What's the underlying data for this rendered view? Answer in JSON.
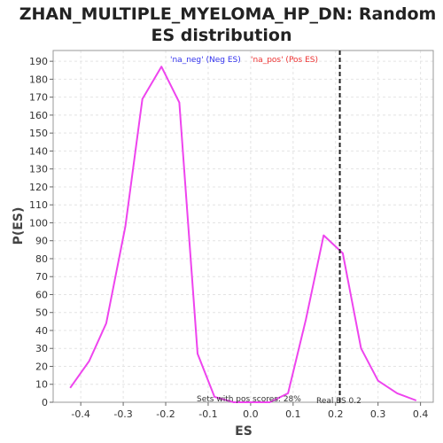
{
  "chart_data": {
    "type": "line",
    "title_line1": "ZHAN_MULTIPLE_MYELOMA_HP_DN: Random",
    "title_line2": "ES distribution",
    "xlabel": "ES",
    "ylabel": "P(ES)",
    "xlim": [
      -0.465,
      0.43
    ],
    "ylim": [
      0,
      196
    ],
    "x_ticks": [
      -0.4,
      -0.3,
      -0.2,
      -0.1,
      0.0,
      0.1,
      0.2,
      0.3,
      0.4
    ],
    "x_tick_labels": [
      "-0.4",
      "-0.3",
      "-0.2",
      "-0.1",
      "0.0",
      "0.1",
      "0.2",
      "0.3",
      "0.4"
    ],
    "y_ticks": [
      0,
      10,
      20,
      30,
      40,
      50,
      60,
      70,
      80,
      90,
      100,
      110,
      120,
      130,
      140,
      150,
      160,
      170,
      180,
      190
    ],
    "y_tick_labels": [
      "0",
      "10",
      "20",
      "30",
      "40",
      "50",
      "60",
      "70",
      "80",
      "90",
      "100",
      "110",
      "120",
      "130",
      "140",
      "150",
      "160",
      "170",
      "180",
      "190"
    ],
    "grid": true,
    "series": [
      {
        "color": "#ee44ee",
        "x": [
          -0.425,
          -0.38,
          -0.34,
          -0.295,
          -0.255,
          -0.21,
          -0.168,
          -0.125,
          -0.085,
          -0.04,
          0.0,
          0.045,
          0.088,
          0.13,
          0.172,
          0.217,
          0.26,
          0.3,
          0.345,
          0.39
        ],
        "y": [
          8,
          23,
          44,
          98,
          169,
          187,
          167,
          27,
          3,
          0,
          0,
          0,
          5,
          46,
          93,
          83,
          30,
          12,
          5,
          1
        ]
      }
    ],
    "real_es": 0.21,
    "real_es_label": "Real ES 0.2",
    "legend": [
      {
        "label": "'na_neg' (Neg ES)",
        "color": "#3333ee"
      },
      {
        "label": "'na_pos' (Pos ES)",
        "color": "#ee3333"
      }
    ],
    "legend_position": "top",
    "annotation": "Sets with pos scores: 28%"
  }
}
